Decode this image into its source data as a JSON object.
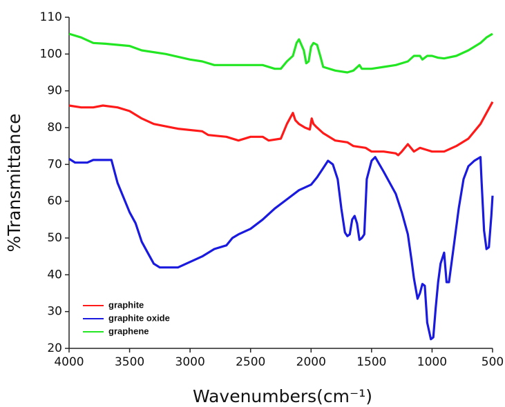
{
  "chart_data": {
    "type": "line",
    "xlabel": "Wavenumbers(cm⁻¹)",
    "ylabel": "%Transmittance",
    "xlim": [
      4000,
      500
    ],
    "xticks": [
      4000,
      3500,
      3000,
      2500,
      2000,
      1500,
      1000,
      500
    ],
    "ylim": [
      20,
      110
    ],
    "yticks": [
      20,
      30,
      40,
      50,
      60,
      70,
      80,
      90,
      100,
      110
    ],
    "legend": "lower-left",
    "series": [
      {
        "name": "graphite",
        "color": "#ff1a1a",
        "x": [
          4000,
          3900,
          3800,
          3720,
          3600,
          3500,
          3400,
          3300,
          3100,
          2900,
          2850,
          2700,
          2600,
          2500,
          2400,
          2350,
          2250,
          2200,
          2150,
          2130,
          2100,
          2050,
          2010,
          1995,
          1980,
          1960,
          1900,
          1800,
          1700,
          1650,
          1550,
          1500,
          1400,
          1300,
          1280,
          1250,
          1200,
          1150,
          1100,
          1050,
          1000,
          900,
          800,
          700,
          600,
          500
        ],
        "values": [
          86,
          85.5,
          85.5,
          86,
          85.5,
          84.5,
          82.5,
          81,
          79.7,
          79,
          78,
          77.5,
          76.5,
          77.5,
          77.5,
          76.5,
          77,
          81,
          84,
          82,
          81,
          80,
          79.5,
          82.5,
          81,
          80.3,
          78.5,
          76.5,
          76,
          75,
          74.5,
          73.5,
          73.5,
          73,
          72.5,
          73.5,
          75.5,
          73.5,
          74.5,
          74,
          73.5,
          73.5,
          75,
          77,
          81,
          87
        ]
      },
      {
        "name": "graphite oxide",
        "color": "#1a1adf",
        "x": [
          4000,
          3950,
          3850,
          3800,
          3650,
          3600,
          3500,
          3450,
          3400,
          3350,
          3300,
          3250,
          3100,
          3000,
          2900,
          2800,
          2700,
          2650,
          2600,
          2500,
          2400,
          2300,
          2200,
          2100,
          2000,
          1950,
          1900,
          1860,
          1820,
          1780,
          1750,
          1720,
          1700,
          1680,
          1660,
          1640,
          1620,
          1600,
          1580,
          1560,
          1540,
          1500,
          1470,
          1400,
          1300,
          1250,
          1200,
          1170,
          1150,
          1120,
          1100,
          1080,
          1060,
          1040,
          1010,
          990,
          970,
          950,
          930,
          900,
          880,
          860,
          820,
          780,
          740,
          700,
          650,
          600,
          590,
          570,
          550,
          530,
          510,
          500
        ],
        "values": [
          71.5,
          70.5,
          70.5,
          71.2,
          71.2,
          65,
          57,
          54,
          49,
          46,
          43,
          42,
          42,
          43.5,
          45,
          47,
          48,
          50,
          51,
          52.5,
          55,
          58,
          60.5,
          63,
          64.5,
          66.5,
          69,
          71,
          70,
          66,
          58,
          51.5,
          50.5,
          51,
          55,
          56,
          54,
          49.5,
          50,
          51,
          66,
          71,
          72,
          68,
          62,
          57,
          51,
          44,
          39,
          33.5,
          35,
          37.5,
          37,
          27,
          22.5,
          23,
          31,
          38,
          43,
          46,
          38,
          38,
          48,
          58,
          66,
          69.5,
          71,
          72,
          65,
          52,
          47,
          47.5,
          56,
          61.5
        ]
      },
      {
        "name": "graphene",
        "color": "#22e622",
        "x": [
          4000,
          3900,
          3800,
          3700,
          3600,
          3500,
          3400,
          3200,
          3000,
          2900,
          2800,
          2600,
          2400,
          2300,
          2250,
          2200,
          2150,
          2120,
          2100,
          2060,
          2040,
          2020,
          2000,
          1980,
          1950,
          1920,
          1900,
          1800,
          1700,
          1650,
          1600,
          1580,
          1500,
          1400,
          1300,
          1200,
          1150,
          1100,
          1080,
          1040,
          1000,
          950,
          900,
          800,
          700,
          600,
          550,
          500
        ],
        "values": [
          105.5,
          104.5,
          103,
          102.8,
          102.5,
          102.2,
          101,
          100,
          98.5,
          98,
          97,
          97,
          97,
          96,
          96,
          98,
          99.5,
          103,
          104,
          101,
          97.5,
          98,
          102,
          103,
          102.5,
          99,
          96.5,
          95.5,
          95,
          95.5,
          97,
          96,
          96,
          96.5,
          97,
          98,
          99.5,
          99.5,
          98.5,
          99.5,
          99.5,
          99,
          98.8,
          99.5,
          101,
          103,
          104.5,
          105.5
        ]
      }
    ]
  }
}
